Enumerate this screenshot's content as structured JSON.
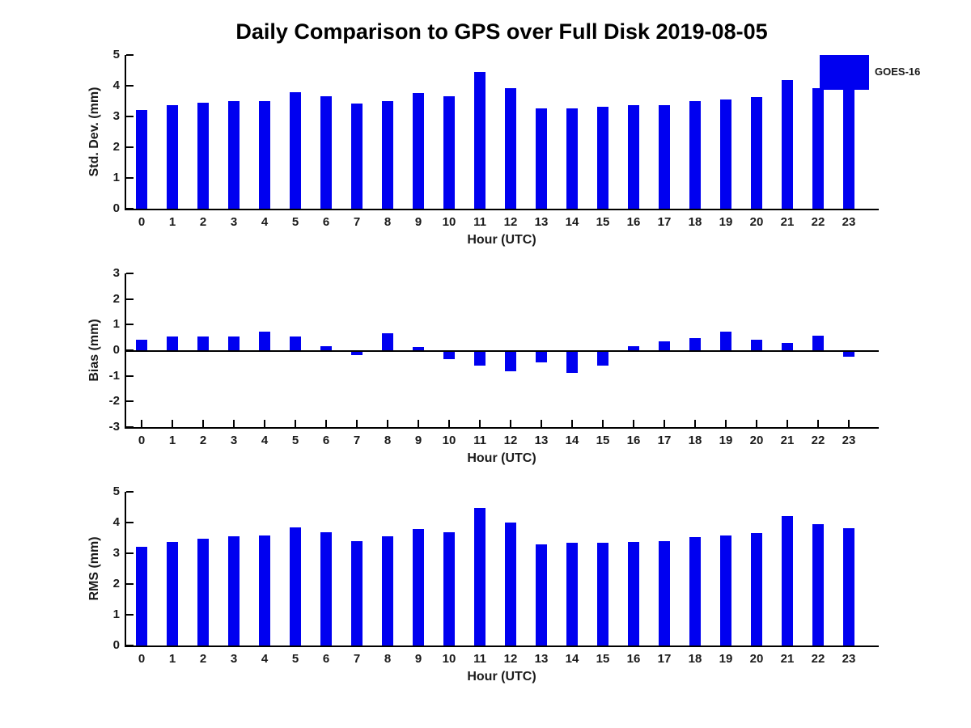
{
  "title": "Daily Comparison to GPS over Full Disk 2019-08-05",
  "xlabel": "Hour (UTC)",
  "legend": {
    "label": "GOES-16",
    "color": "#0000F0"
  },
  "text_color": "#1a1a1a",
  "chart_data": [
    {
      "type": "bar",
      "title": "Daily Comparison to GPS over Full Disk 2019-08-05",
      "ylabel": "Std. Dev. (mm)",
      "xlabel": "Hour (UTC)",
      "categories": [
        "0",
        "1",
        "2",
        "3",
        "4",
        "5",
        "6",
        "7",
        "8",
        "9",
        "10",
        "11",
        "12",
        "13",
        "14",
        "15",
        "16",
        "17",
        "18",
        "19",
        "20",
        "21",
        "22",
        "23"
      ],
      "values": [
        3.21,
        3.36,
        3.46,
        3.51,
        3.49,
        3.8,
        3.66,
        3.41,
        3.51,
        3.77,
        3.66,
        4.45,
        3.93,
        3.27,
        3.25,
        3.32,
        3.37,
        3.38,
        3.51,
        3.54,
        3.63,
        4.19,
        3.93,
        3.9
      ],
      "ylim": [
        0,
        5
      ],
      "yticks": [
        0,
        1,
        2,
        3,
        4,
        5
      ],
      "legend_entries": [
        "GOES-16"
      ],
      "legend_position": "upper-right",
      "grid": false,
      "note": "Top of hour-23 bar is hidden behind the legend swatch"
    },
    {
      "type": "bar",
      "ylabel": "Bias (mm)",
      "xlabel": "Hour (UTC)",
      "categories": [
        "0",
        "1",
        "2",
        "3",
        "4",
        "5",
        "6",
        "7",
        "8",
        "9",
        "10",
        "11",
        "12",
        "13",
        "14",
        "15",
        "16",
        "17",
        "18",
        "19",
        "20",
        "21",
        "22",
        "23"
      ],
      "values": [
        0.4,
        0.55,
        0.55,
        0.55,
        0.73,
        0.55,
        0.17,
        -0.12,
        0.65,
        0.12,
        -0.28,
        -0.54,
        -0.76,
        -0.4,
        -0.83,
        -0.55,
        0.16,
        0.35,
        0.48,
        0.73,
        0.4,
        0.27,
        0.58,
        -0.18
      ],
      "ylim": [
        -3,
        3
      ],
      "yticks": [
        -3,
        -2,
        -1,
        0,
        1,
        2,
        3
      ],
      "grid": false
    },
    {
      "type": "bar",
      "ylabel": "RMS (mm)",
      "xlabel": "Hour (UTC)",
      "categories": [
        "0",
        "1",
        "2",
        "3",
        "4",
        "5",
        "6",
        "7",
        "8",
        "9",
        "10",
        "11",
        "12",
        "13",
        "14",
        "15",
        "16",
        "17",
        "18",
        "19",
        "20",
        "21",
        "22",
        "23"
      ],
      "values": [
        3.22,
        3.38,
        3.48,
        3.55,
        3.57,
        3.83,
        3.68,
        3.39,
        3.55,
        3.78,
        3.68,
        4.48,
        3.99,
        3.3,
        3.33,
        3.35,
        3.37,
        3.4,
        3.53,
        3.58,
        3.65,
        4.2,
        3.96,
        3.81
      ],
      "ylim": [
        0,
        5
      ],
      "yticks": [
        0,
        1,
        2,
        3,
        4,
        5
      ],
      "grid": false
    }
  ]
}
